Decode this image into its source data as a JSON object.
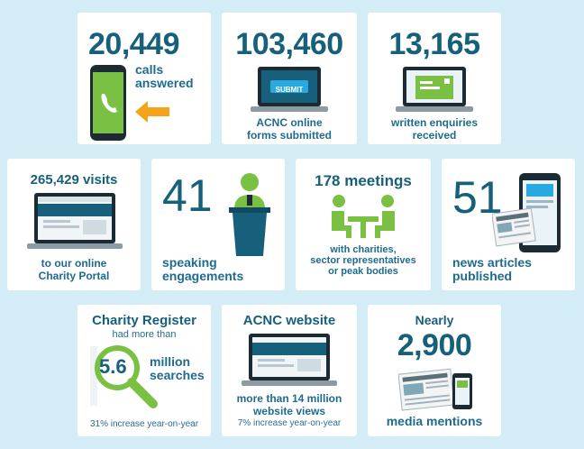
{
  "cards": [
    {
      "number": "20,449",
      "lines": [
        "calls",
        "answered"
      ]
    },
    {
      "number": "103,460",
      "button": "SUBMIT",
      "lines": [
        "ACNC online",
        "forms submitted"
      ]
    },
    {
      "number": "13,165",
      "lines": [
        "written enquiries",
        "received"
      ]
    },
    {
      "number": "265,429",
      "suffix": "visits",
      "lines": [
        "to our online",
        "Charity Portal"
      ]
    },
    {
      "number": "41",
      "lines": [
        "speaking",
        "engagements"
      ]
    },
    {
      "number": "178",
      "suffix": "meetings",
      "lines": [
        "with charities,",
        "sector representatives",
        "or peak bodies"
      ]
    },
    {
      "number": "51",
      "lines": [
        "news articles",
        "published"
      ]
    },
    {
      "heading": "Charity Register",
      "subheading": "had more than",
      "number": "5.6",
      "lines": [
        "million",
        "searches"
      ],
      "note": "31% increase year-on-year"
    },
    {
      "heading": "ACNC website",
      "lines": [
        "more than 14 million",
        "website views"
      ],
      "note": "7% increase year-on-year"
    },
    {
      "heading": "Nearly",
      "number": "2,900",
      "lines": [
        "media mentions"
      ]
    }
  ]
}
